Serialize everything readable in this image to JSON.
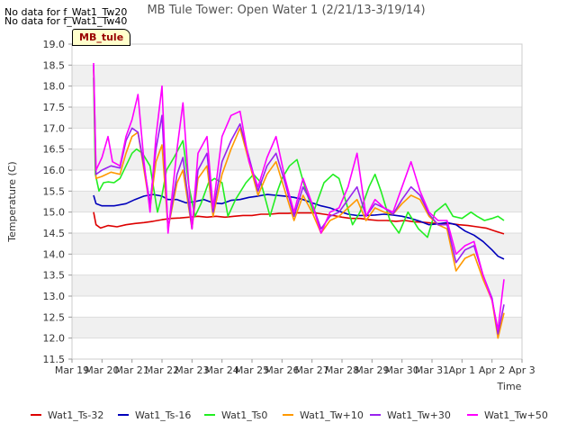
{
  "chart_data": {
    "type": "line",
    "title": "MB Tule Tower: Open Water 1 (2/21/13-3/19/14)",
    "xlabel": "Time",
    "ylabel": "Temperature (C)",
    "x_ticks": [
      "Mar 19",
      "Mar 20",
      "Mar 21",
      "Mar 22",
      "Mar 23",
      "Mar 24",
      "Mar 25",
      "Mar 26",
      "Mar 27",
      "Mar 28",
      "Mar 29",
      "Mar 30",
      "Mar 31",
      "Apr 1",
      "Apr 2",
      "Apr 3"
    ],
    "y_ticks": [
      "11.5",
      "12.0",
      "12.5",
      "13.0",
      "13.5",
      "14.0",
      "14.5",
      "15.0",
      "15.5",
      "16.0",
      "16.5",
      "17.0",
      "17.5",
      "18.0",
      "18.5",
      "19.0"
    ],
    "ylim": [
      11.5,
      19.0
    ],
    "x_unit": "days since Mar 19",
    "xlim": [
      0,
      15
    ],
    "grid": "horizontal alternating bands",
    "legend_position": "bottom",
    "no_data_notes": [
      "No data for f_Wat1_Tw20",
      "No data for f_Wat1_Tw40"
    ],
    "site_label": "MB_tule",
    "series": [
      {
        "name": "Wat1_Ts-32",
        "color": "#dd0000",
        "x": [
          0.72,
          0.8,
          0.95,
          1.2,
          1.5,
          1.8,
          2.1,
          2.4,
          2.7,
          3.0,
          3.3,
          3.6,
          3.9,
          4.2,
          4.5,
          4.8,
          5.1,
          5.4,
          5.7,
          6.0,
          6.3,
          6.6,
          6.9,
          7.2,
          7.5,
          7.8,
          8.1,
          8.4,
          8.7,
          9.0,
          9.3,
          9.6,
          9.9,
          10.2,
          10.5,
          10.8,
          11.1,
          11.4,
          11.7,
          12.0,
          12.3,
          12.6,
          12.9,
          13.2,
          13.5,
          13.8,
          14.1,
          14.4
        ],
        "y": [
          15.0,
          14.7,
          14.62,
          14.68,
          14.65,
          14.7,
          14.73,
          14.75,
          14.78,
          14.82,
          14.85,
          14.86,
          14.88,
          14.9,
          14.88,
          14.9,
          14.88,
          14.9,
          14.92,
          14.92,
          14.95,
          14.95,
          14.97,
          14.97,
          14.98,
          14.98,
          14.98,
          14.95,
          14.92,
          14.88,
          14.85,
          14.85,
          14.82,
          14.8,
          14.8,
          14.78,
          14.8,
          14.77,
          14.76,
          14.74,
          14.72,
          14.73,
          14.7,
          14.68,
          14.65,
          14.62,
          14.55,
          14.48
        ]
      },
      {
        "name": "Wat1_Ts-16",
        "color": "#0000bb",
        "x": [
          0.72,
          0.8,
          1.0,
          1.4,
          1.8,
          2.1,
          2.4,
          2.7,
          3.0,
          3.2,
          3.5,
          3.8,
          4.1,
          4.4,
          4.7,
          5.0,
          5.3,
          5.6,
          5.9,
          6.2,
          6.5,
          6.8,
          7.1,
          7.4,
          7.7,
          8.0,
          8.3,
          8.6,
          8.9,
          9.2,
          9.5,
          9.8,
          10.1,
          10.4,
          10.7,
          11.0,
          11.3,
          11.6,
          11.9,
          12.2,
          12.5,
          12.8,
          13.1,
          13.4,
          13.7,
          14.0,
          14.2,
          14.4
        ],
        "y": [
          15.4,
          15.2,
          15.15,
          15.15,
          15.2,
          15.3,
          15.38,
          15.42,
          15.38,
          15.3,
          15.3,
          15.22,
          15.25,
          15.3,
          15.22,
          15.2,
          15.28,
          15.3,
          15.35,
          15.38,
          15.42,
          15.4,
          15.38,
          15.35,
          15.3,
          15.22,
          15.15,
          15.1,
          15.02,
          14.95,
          14.92,
          14.92,
          14.93,
          14.95,
          14.93,
          14.9,
          14.85,
          14.78,
          14.7,
          14.72,
          14.75,
          14.7,
          14.55,
          14.45,
          14.3,
          14.1,
          13.95,
          13.88
        ]
      },
      {
        "name": "Wat1_Ts0",
        "color": "#22ee22",
        "x": [
          0.72,
          0.78,
          0.9,
          1.05,
          1.2,
          1.4,
          1.6,
          1.8,
          2.0,
          2.15,
          2.35,
          2.6,
          2.85,
          3.0,
          3.15,
          3.4,
          3.7,
          3.9,
          4.1,
          4.3,
          4.55,
          4.75,
          5.0,
          5.2,
          5.45,
          5.8,
          6.05,
          6.3,
          6.6,
          6.85,
          7.0,
          7.25,
          7.5,
          7.8,
          8.05,
          8.4,
          8.7,
          8.9,
          9.15,
          9.35,
          9.6,
          9.9,
          10.1,
          10.3,
          10.6,
          10.9,
          11.2,
          11.55,
          11.85,
          12.1,
          12.45,
          12.7,
          13.0,
          13.3,
          13.5,
          13.75,
          14.0,
          14.2,
          14.4
        ],
        "y": [
          18.2,
          15.9,
          15.5,
          15.7,
          15.72,
          15.7,
          15.8,
          16.1,
          16.4,
          16.5,
          16.4,
          16.1,
          15.0,
          15.4,
          16.0,
          16.3,
          16.7,
          15.6,
          14.9,
          15.2,
          15.7,
          15.8,
          15.7,
          14.9,
          15.3,
          15.7,
          15.9,
          15.7,
          14.9,
          15.5,
          15.8,
          16.1,
          16.25,
          15.5,
          15.0,
          15.7,
          15.9,
          15.8,
          15.2,
          14.7,
          15.0,
          15.6,
          15.9,
          15.5,
          14.8,
          14.5,
          15.0,
          14.6,
          14.4,
          15.0,
          15.2,
          14.9,
          14.85,
          15.0,
          14.9,
          14.8,
          14.85,
          14.9,
          14.8
        ]
      },
      {
        "name": "Wat1_Tw+10",
        "color": "#ff9900",
        "x": [
          0.72,
          0.8,
          1.0,
          1.3,
          1.6,
          1.8,
          2.0,
          2.2,
          2.4,
          2.6,
          2.8,
          3.0,
          3.2,
          3.5,
          3.7,
          4.0,
          4.2,
          4.5,
          4.7,
          5.0,
          5.3,
          5.6,
          5.9,
          6.2,
          6.5,
          6.8,
          7.1,
          7.4,
          7.7,
          8.0,
          8.3,
          8.6,
          8.9,
          9.2,
          9.5,
          9.8,
          10.1,
          10.4,
          10.7,
          11.0,
          11.3,
          11.6,
          11.9,
          12.2,
          12.5,
          12.8,
          13.1,
          13.4,
          13.7,
          14.0,
          14.2,
          14.4
        ],
        "y": [
          18.4,
          15.8,
          15.85,
          15.95,
          15.9,
          16.4,
          16.8,
          16.9,
          16.0,
          15.1,
          16.2,
          16.6,
          14.6,
          15.7,
          16.0,
          14.6,
          15.8,
          16.1,
          14.9,
          15.9,
          16.5,
          17.0,
          16.2,
          15.4,
          15.9,
          16.2,
          15.5,
          14.8,
          15.4,
          15.0,
          14.5,
          14.8,
          14.9,
          15.1,
          15.3,
          14.8,
          15.1,
          15.0,
          14.95,
          15.2,
          15.4,
          15.3,
          14.9,
          14.7,
          14.6,
          13.6,
          13.9,
          14.0,
          13.4,
          12.9,
          12.0,
          12.6
        ]
      },
      {
        "name": "Wat1_Tw+30",
        "color": "#9922ee",
        "x": [
          0.72,
          0.8,
          1.0,
          1.3,
          1.6,
          1.8,
          2.0,
          2.2,
          2.4,
          2.6,
          2.8,
          3.0,
          3.2,
          3.5,
          3.7,
          4.0,
          4.2,
          4.5,
          4.7,
          5.0,
          5.3,
          5.6,
          5.9,
          6.2,
          6.5,
          6.8,
          7.1,
          7.4,
          7.7,
          8.0,
          8.3,
          8.6,
          8.9,
          9.2,
          9.5,
          9.8,
          10.1,
          10.4,
          10.7,
          11.0,
          11.3,
          11.6,
          11.9,
          12.2,
          12.5,
          12.8,
          13.1,
          13.4,
          13.7,
          14.0,
          14.2,
          14.4
        ],
        "y": [
          18.5,
          15.9,
          16.0,
          16.1,
          16.05,
          16.7,
          17.0,
          16.9,
          16.1,
          15.2,
          16.5,
          17.3,
          14.6,
          15.9,
          16.3,
          14.6,
          16.0,
          16.4,
          15.0,
          16.2,
          16.7,
          17.1,
          16.3,
          15.5,
          16.1,
          16.4,
          15.7,
          14.9,
          15.6,
          15.2,
          14.6,
          14.9,
          15.0,
          15.3,
          15.6,
          14.9,
          15.2,
          15.1,
          14.95,
          15.3,
          15.6,
          15.4,
          14.95,
          14.7,
          14.7,
          13.8,
          14.1,
          14.2,
          13.5,
          12.95,
          12.1,
          12.8
        ]
      },
      {
        "name": "Wat1_Tw+50",
        "color": "#ff00ff",
        "x": [
          0.72,
          0.8,
          1.0,
          1.2,
          1.35,
          1.6,
          1.8,
          2.0,
          2.2,
          2.4,
          2.6,
          2.8,
          3.0,
          3.2,
          3.5,
          3.7,
          4.0,
          4.2,
          4.5,
          4.7,
          5.0,
          5.3,
          5.6,
          5.9,
          6.2,
          6.5,
          6.8,
          7.1,
          7.4,
          7.7,
          8.0,
          8.3,
          8.6,
          8.9,
          9.2,
          9.5,
          9.8,
          10.1,
          10.4,
          10.7,
          11.0,
          11.3,
          11.6,
          11.9,
          12.2,
          12.5,
          12.8,
          13.1,
          13.4,
          13.7,
          14.0,
          14.2,
          14.4
        ],
        "y": [
          18.55,
          16.0,
          16.3,
          16.8,
          16.2,
          16.1,
          16.8,
          17.2,
          17.8,
          16.2,
          15.0,
          16.8,
          18.0,
          14.5,
          16.5,
          17.6,
          14.6,
          16.4,
          16.8,
          15.1,
          16.8,
          17.3,
          17.4,
          16.2,
          15.6,
          16.3,
          16.8,
          15.8,
          15.0,
          15.8,
          15.2,
          14.5,
          15.0,
          15.1,
          15.6,
          16.4,
          14.9,
          15.3,
          15.1,
          15.0,
          15.6,
          16.2,
          15.5,
          15.0,
          14.8,
          14.8,
          14.0,
          14.2,
          14.3,
          13.5,
          12.9,
          12.2,
          13.4
        ]
      }
    ]
  }
}
